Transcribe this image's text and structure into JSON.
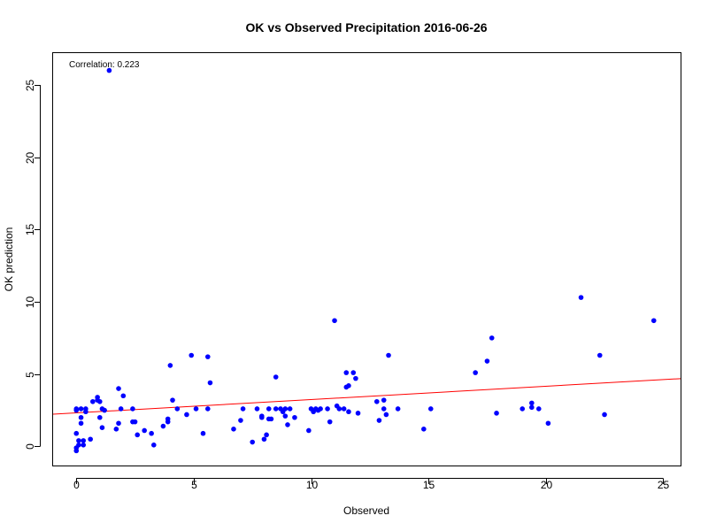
{
  "chart_data": {
    "type": "scatter",
    "title": "OK vs Observed Precipitation  2016-06-26",
    "xlabel": "Observed",
    "ylabel": "OK prediction",
    "xlim": [
      -0.99,
      25.74
    ],
    "ylim": [
      -1.32,
      27.2
    ],
    "x_ticks": [
      0,
      5,
      10,
      15,
      20,
      25
    ],
    "y_ticks": [
      0,
      5,
      10,
      15,
      20,
      25
    ],
    "grid": false,
    "annotation": "Correlation:  0.223",
    "point_color": "#0000ff",
    "trend_color": "#ff0000",
    "trendline": {
      "intercept": 2.32,
      "slope": 0.092
    },
    "points": [
      [
        0.0,
        2.6
      ],
      [
        0.0,
        2.5
      ],
      [
        0.0,
        0.9
      ],
      [
        0.0,
        -0.1
      ],
      [
        0.0,
        -0.3
      ],
      [
        0.1,
        0.4
      ],
      [
        0.1,
        0.1
      ],
      [
        0.2,
        2.6
      ],
      [
        0.2,
        2.0
      ],
      [
        0.2,
        1.6
      ],
      [
        0.3,
        0.4
      ],
      [
        0.3,
        0.1
      ],
      [
        0.4,
        2.6
      ],
      [
        0.4,
        2.4
      ],
      [
        0.6,
        0.5
      ],
      [
        0.7,
        3.1
      ],
      [
        0.9,
        3.2
      ],
      [
        0.9,
        3.4
      ],
      [
        1.0,
        3.1
      ],
      [
        1.0,
        2.0
      ],
      [
        1.1,
        1.3
      ],
      [
        1.1,
        2.6
      ],
      [
        1.2,
        2.5
      ],
      [
        1.4,
        26.0
      ],
      [
        1.7,
        1.2
      ],
      [
        1.8,
        4.0
      ],
      [
        1.8,
        1.6
      ],
      [
        1.9,
        2.6
      ],
      [
        2.0,
        3.5
      ],
      [
        2.4,
        1.7
      ],
      [
        2.4,
        2.6
      ],
      [
        2.5,
        1.7
      ],
      [
        2.6,
        0.8
      ],
      [
        2.9,
        1.1
      ],
      [
        3.2,
        0.9
      ],
      [
        3.3,
        0.1
      ],
      [
        3.7,
        1.4
      ],
      [
        3.9,
        1.9
      ],
      [
        3.9,
        1.7
      ],
      [
        4.0,
        5.6
      ],
      [
        4.1,
        3.2
      ],
      [
        4.3,
        2.6
      ],
      [
        4.7,
        2.2
      ],
      [
        4.9,
        6.3
      ],
      [
        5.1,
        2.6
      ],
      [
        5.4,
        0.9
      ],
      [
        5.6,
        2.6
      ],
      [
        5.6,
        6.2
      ],
      [
        5.7,
        4.4
      ],
      [
        6.7,
        1.2
      ],
      [
        7.0,
        1.8
      ],
      [
        7.1,
        2.6
      ],
      [
        7.5,
        0.3
      ],
      [
        7.7,
        2.6
      ],
      [
        7.9,
        2.0
      ],
      [
        7.9,
        2.1
      ],
      [
        8.0,
        0.5
      ],
      [
        8.1,
        0.8
      ],
      [
        8.2,
        1.9
      ],
      [
        8.2,
        2.6
      ],
      [
        8.3,
        1.9
      ],
      [
        8.5,
        2.6
      ],
      [
        8.5,
        4.8
      ],
      [
        8.7,
        2.6
      ],
      [
        8.8,
        2.4
      ],
      [
        8.9,
        2.1
      ],
      [
        8.9,
        2.6
      ],
      [
        9.0,
        1.5
      ],
      [
        9.1,
        2.6
      ],
      [
        9.3,
        2.0
      ],
      [
        9.9,
        1.1
      ],
      [
        10.0,
        2.6
      ],
      [
        10.1,
        2.4
      ],
      [
        10.2,
        2.6
      ],
      [
        10.3,
        2.5
      ],
      [
        10.4,
        2.6
      ],
      [
        10.7,
        2.6
      ],
      [
        10.8,
        1.7
      ],
      [
        11.0,
        8.7
      ],
      [
        11.1,
        2.8
      ],
      [
        11.2,
        2.6
      ],
      [
        11.4,
        2.6
      ],
      [
        11.5,
        4.1
      ],
      [
        11.5,
        5.1
      ],
      [
        11.6,
        4.2
      ],
      [
        11.6,
        2.4
      ],
      [
        11.8,
        5.1
      ],
      [
        11.9,
        4.7
      ],
      [
        12.0,
        2.3
      ],
      [
        12.8,
        3.1
      ],
      [
        12.9,
        1.8
      ],
      [
        13.1,
        2.6
      ],
      [
        13.1,
        3.2
      ],
      [
        13.2,
        2.2
      ],
      [
        13.3,
        6.3
      ],
      [
        13.7,
        2.6
      ],
      [
        14.8,
        1.2
      ],
      [
        15.1,
        2.6
      ],
      [
        17.0,
        5.1
      ],
      [
        17.5,
        5.9
      ],
      [
        17.7,
        7.5
      ],
      [
        17.9,
        2.3
      ],
      [
        19.0,
        2.6
      ],
      [
        19.4,
        2.7
      ],
      [
        19.4,
        3.0
      ],
      [
        19.7,
        2.6
      ],
      [
        20.1,
        1.6
      ],
      [
        21.5,
        10.3
      ],
      [
        22.3,
        6.3
      ],
      [
        22.5,
        2.2
      ],
      [
        24.6,
        8.7
      ]
    ]
  }
}
